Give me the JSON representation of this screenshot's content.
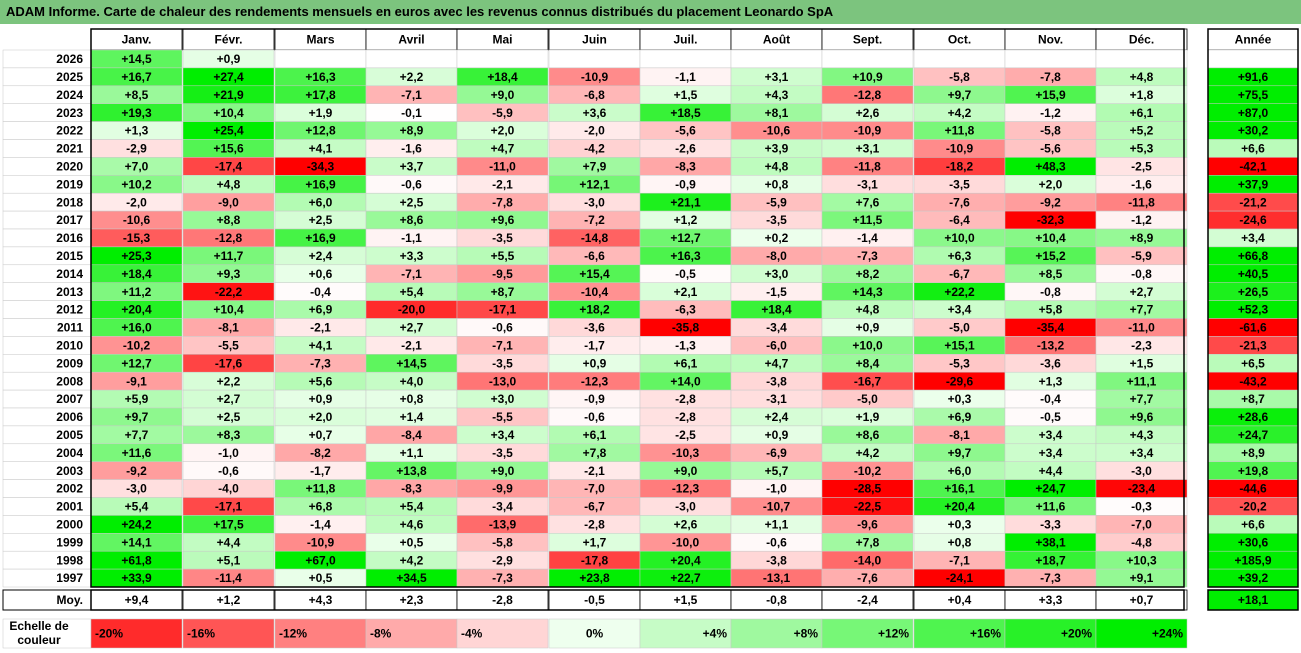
{
  "title": "ADAM Informe. Carte de chaleur des rendements mensuels en euros avec les revenus connus distribués du placement Leonardo SpA",
  "chart_data": {
    "type": "heatmap",
    "title": "ADAM Informe. Carte de chaleur des rendements mensuels en euros avec les revenus connus distribués du placement Leonardo SpA",
    "months": [
      "Janv.",
      "Févr.",
      "Mars",
      "Avril",
      "Mai",
      "Juin",
      "Juil.",
      "Août",
      "Sept.",
      "Oct.",
      "Nov.",
      "Déc."
    ],
    "year_header": "Année",
    "rows": [
      {
        "year": "2026",
        "m": [
          "+14,5",
          "+0,9",
          "",
          "",
          "",
          "",
          "",
          "",
          "",
          "",
          "",
          ""
        ],
        "y": ""
      },
      {
        "year": "2025",
        "m": [
          "+16,7",
          "+27,4",
          "+16,3",
          "+2,2",
          "+18,4",
          "-10,9",
          "-1,1",
          "+3,1",
          "+10,9",
          "-5,8",
          "-7,8",
          "+4,8"
        ],
        "y": "+91,6"
      },
      {
        "year": "2024",
        "m": [
          "+8,5",
          "+21,9",
          "+17,8",
          "-7,1",
          "+9,0",
          "-6,8",
          "+1,5",
          "+4,3",
          "-12,8",
          "+9,7",
          "+15,9",
          "+1,8"
        ],
        "y": "+75,5"
      },
      {
        "year": "2023",
        "m": [
          "+19,3",
          "+10,4",
          "+1,9",
          "-0,1",
          "-5,9",
          "+3,6",
          "+18,5",
          "+8,1",
          "+2,6",
          "+4,2",
          "-1,2",
          "+6,1"
        ],
        "y": "+87,0"
      },
      {
        "year": "2022",
        "m": [
          "+1,3",
          "+25,4",
          "+12,8",
          "+8,9",
          "+2,0",
          "-2,0",
          "-5,6",
          "-10,6",
          "-10,9",
          "+11,8",
          "-5,8",
          "+5,2"
        ],
        "y": "+30,2"
      },
      {
        "year": "2021",
        "m": [
          "-2,9",
          "+15,6",
          "+4,1",
          "-1,6",
          "+4,7",
          "-4,2",
          "-2,6",
          "+3,9",
          "+3,1",
          "-10,9",
          "-5,6",
          "+5,3"
        ],
        "y": "+6,6"
      },
      {
        "year": "2020",
        "m": [
          "+7,0",
          "-17,4",
          "-34,3",
          "+3,7",
          "-11,0",
          "+7,9",
          "-8,3",
          "+4,8",
          "-11,8",
          "-18,2",
          "+48,3",
          "-2,5"
        ],
        "y": "-42,1"
      },
      {
        "year": "2019",
        "m": [
          "+10,2",
          "+4,8",
          "+16,9",
          "-0,6",
          "-2,1",
          "+12,1",
          "-0,9",
          "+0,8",
          "-3,1",
          "-3,5",
          "+2,0",
          "-1,6"
        ],
        "y": "+37,9"
      },
      {
        "year": "2018",
        "m": [
          "-2,0",
          "-9,0",
          "+6,0",
          "+2,5",
          "-7,8",
          "-3,0",
          "+21,1",
          "-5,9",
          "+7,6",
          "-7,6",
          "-9,2",
          "-11,8"
        ],
        "y": "-21,2"
      },
      {
        "year": "2017",
        "m": [
          "-10,6",
          "+8,8",
          "+2,5",
          "+8,6",
          "+9,6",
          "-7,2",
          "+1,2",
          "-3,5",
          "+11,5",
          "-6,4",
          "-32,3",
          "-1,2"
        ],
        "y": "-24,6"
      },
      {
        "year": "2016",
        "m": [
          "-15,3",
          "-12,8",
          "+16,9",
          "-1,1",
          "-3,5",
          "-14,8",
          "+12,7",
          "+0,2",
          "-1,4",
          "+10,0",
          "+10,4",
          "+8,9"
        ],
        "y": "+3,4"
      },
      {
        "year": "2015",
        "m": [
          "+25,3",
          "+11,7",
          "+2,4",
          "+3,3",
          "+5,5",
          "-6,6",
          "+16,3",
          "-8,0",
          "-7,3",
          "+6,3",
          "+15,2",
          "-5,9"
        ],
        "y": "+66,8"
      },
      {
        "year": "2014",
        "m": [
          "+18,4",
          "+9,3",
          "+0,6",
          "-7,1",
          "-9,5",
          "+15,4",
          "-0,5",
          "+3,0",
          "+8,2",
          "-6,7",
          "+8,5",
          "-0,8"
        ],
        "y": "+40,5"
      },
      {
        "year": "2013",
        "m": [
          "+11,2",
          "-22,2",
          "-0,4",
          "+5,4",
          "+8,7",
          "-10,4",
          "+2,1",
          "-1,5",
          "+14,3",
          "+22,2",
          "-0,8",
          "+2,7"
        ],
        "y": "+26,5"
      },
      {
        "year": "2012",
        "m": [
          "+20,4",
          "+10,4",
          "+6,9",
          "-20,0",
          "-17,1",
          "+18,2",
          "-6,3",
          "+18,4",
          "+4,8",
          "+3,4",
          "+5,8",
          "+7,7"
        ],
        "y": "+52,3"
      },
      {
        "year": "2011",
        "m": [
          "+16,0",
          "-8,1",
          "-2,1",
          "+2,7",
          "-0,6",
          "-3,6",
          "-35,8",
          "-3,4",
          "+0,9",
          "-5,0",
          "-35,4",
          "-11,0"
        ],
        "y": "-61,6"
      },
      {
        "year": "2010",
        "m": [
          "-10,2",
          "-5,5",
          "+4,1",
          "-2,1",
          "-7,1",
          "-1,7",
          "-1,3",
          "-6,0",
          "+10,0",
          "+15,1",
          "-13,2",
          "-2,3"
        ],
        "y": "-21,3"
      },
      {
        "year": "2009",
        "m": [
          "+12,7",
          "-17,6",
          "-7,3",
          "+14,5",
          "-3,5",
          "+0,9",
          "+6,1",
          "+4,7",
          "+8,4",
          "-5,3",
          "-3,6",
          "+1,5"
        ],
        "y": "+6,5"
      },
      {
        "year": "2008",
        "m": [
          "-9,1",
          "+2,2",
          "+5,6",
          "+4,0",
          "-13,0",
          "-12,3",
          "+14,0",
          "-3,8",
          "-16,7",
          "-29,6",
          "+1,3",
          "+11,1"
        ],
        "y": "-43,2"
      },
      {
        "year": "2007",
        "m": [
          "+5,9",
          "+2,7",
          "+0,9",
          "+0,8",
          "+3,0",
          "-0,9",
          "-2,8",
          "-3,1",
          "-5,0",
          "+0,3",
          "-0,4",
          "+7,7"
        ],
        "y": "+8,7"
      },
      {
        "year": "2006",
        "m": [
          "+9,7",
          "+2,5",
          "+2,0",
          "+1,4",
          "-5,5",
          "-0,6",
          "-2,8",
          "+2,4",
          "+1,9",
          "+6,9",
          "-0,5",
          "+9,6"
        ],
        "y": "+28,6"
      },
      {
        "year": "2005",
        "m": [
          "+7,7",
          "+8,3",
          "+0,7",
          "-8,4",
          "+3,4",
          "+6,1",
          "-2,5",
          "+0,9",
          "+8,6",
          "-8,1",
          "+3,4",
          "+4,3"
        ],
        "y": "+24,7"
      },
      {
        "year": "2004",
        "m": [
          "+11,6",
          "-1,0",
          "-8,2",
          "+1,1",
          "-3,5",
          "+7,8",
          "-10,3",
          "-6,9",
          "+4,2",
          "+9,7",
          "+3,4",
          "+3,4"
        ],
        "y": "+8,9"
      },
      {
        "year": "2003",
        "m": [
          "-9,2",
          "-0,6",
          "-1,7",
          "+13,8",
          "+9,0",
          "-2,1",
          "+9,0",
          "+5,7",
          "-10,2",
          "+6,0",
          "+4,4",
          "-3,0"
        ],
        "y": "+19,8"
      },
      {
        "year": "2002",
        "m": [
          "-3,0",
          "-4,0",
          "+11,8",
          "-8,3",
          "-9,9",
          "-7,0",
          "-12,3",
          "-1,0",
          "-28,5",
          "+16,1",
          "+24,7",
          "-23,4"
        ],
        "y": "-44,6"
      },
      {
        "year": "2001",
        "m": [
          "+5,4",
          "-17,1",
          "+6,8",
          "+5,4",
          "-3,4",
          "-6,7",
          "-3,0",
          "-10,7",
          "-22,5",
          "+20,4",
          "+11,6",
          "-0,3"
        ],
        "y": "-20,2"
      },
      {
        "year": "2000",
        "m": [
          "+24,2",
          "+17,5",
          "-1,4",
          "+4,6",
          "-13,9",
          "-2,8",
          "+2,6",
          "+1,1",
          "-9,6",
          "+0,3",
          "-3,3",
          "-7,0"
        ],
        "y": "+6,6"
      },
      {
        "year": "1999",
        "m": [
          "+14,1",
          "+4,4",
          "-10,9",
          "+0,5",
          "-5,8",
          "+1,7",
          "-10,0",
          "-0,6",
          "+7,8",
          "+0,8",
          "+38,1",
          "-4,8"
        ],
        "y": "+30,6"
      },
      {
        "year": "1998",
        "m": [
          "+61,8",
          "+5,1",
          "+67,0",
          "+4,2",
          "-2,9",
          "-17,8",
          "+20,4",
          "-3,8",
          "-14,0",
          "-7,1",
          "+18,7",
          "+10,3"
        ],
        "y": "+185,9"
      },
      {
        "year": "1997",
        "m": [
          "+33,9",
          "-11,4",
          "+0,5",
          "+34,5",
          "-7,3",
          "+23,8",
          "+22,7",
          "-13,1",
          "-7,6",
          "-24,1",
          "-7,3",
          "+9,1"
        ],
        "y": "+39,2"
      }
    ],
    "avg": {
      "label": "Moy.",
      "m": [
        "+9,4",
        "+1,2",
        "+4,3",
        "+2,3",
        "-2,8",
        "-0,5",
        "+1,5",
        "-0,8",
        "-2,4",
        "+0,4",
        "+3,3",
        "+0,7"
      ],
      "y": "+18,1"
    },
    "scale": {
      "label_line1": "Echelle de",
      "label_line2": "couleur",
      "steps": [
        "-20%",
        "-16%",
        "-12%",
        "-8%",
        "-4%",
        "0%",
        "+4%",
        "+8%",
        "+12%",
        "+16%",
        "+20%",
        "+24%"
      ]
    },
    "colors": {
      "neg_max": "#ff0000",
      "pos_max": "#00ee00",
      "neutral": "#ffffff",
      "title_bg": "#7cc47e"
    }
  }
}
